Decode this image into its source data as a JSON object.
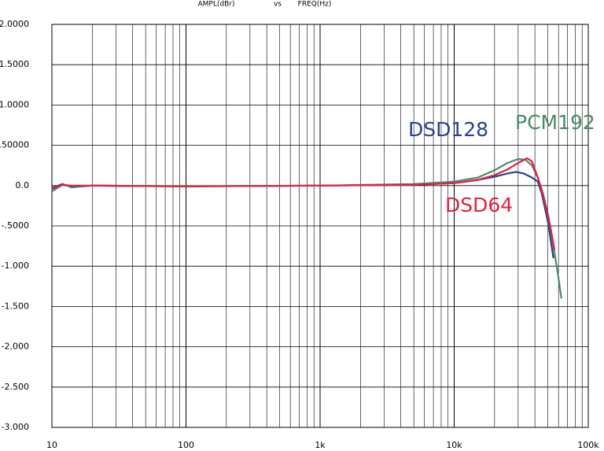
{
  "chart_data": {
    "type": "line",
    "title_parts": [
      "AMPL(dBr)",
      "vs",
      "FREQ(Hz)"
    ],
    "log_x": true,
    "grid": true,
    "xlim": [
      10,
      100000
    ],
    "ylim": [
      -3,
      2
    ],
    "xticks": [
      10,
      100,
      {
        "value": 1000,
        "label": "1k"
      },
      {
        "value": 10000,
        "label": "10k"
      },
      {
        "value": 100000,
        "label": "100k"
      }
    ],
    "yticks": [
      {
        "value": 2,
        "label": "2.0000"
      },
      {
        "value": 1.5,
        "label": "1.5000"
      },
      {
        "value": 1,
        "label": "1.0000"
      },
      {
        "value": 0.5,
        "label": ".50000"
      },
      {
        "value": 0,
        "label": "0.0"
      },
      {
        "value": -0.5,
        "label": "-.5000"
      },
      {
        "value": -1,
        "label": "-1.000"
      },
      {
        "value": -1.5,
        "label": "-1.500"
      },
      {
        "value": -2,
        "label": "-2.000"
      },
      {
        "value": -2.5,
        "label": "-2.500"
      },
      {
        "value": -3,
        "label": "-3.000"
      }
    ],
    "series": [
      {
        "name": "DSD128",
        "color": "#2c3f8e",
        "x": [
          10,
          12,
          14,
          20,
          100,
          1000,
          5000,
          10000,
          15000,
          20000,
          25000,
          29000,
          33000,
          38000,
          42000,
          45000,
          50000,
          55000
        ],
        "values": [
          -0.03,
          0.02,
          -0.02,
          0,
          -0.01,
          0,
          0.01,
          0.03,
          0.07,
          0.11,
          0.15,
          0.17,
          0.15,
          0.1,
          0.05,
          -0.1,
          -0.45,
          -0.9
        ]
      },
      {
        "name": "PCM192",
        "color": "#4a8a6c",
        "x": [
          10,
          12,
          14,
          20,
          100,
          1000,
          5000,
          10000,
          15000,
          20000,
          25000,
          30000,
          34000,
          38000,
          42000,
          46000,
          50000,
          55000,
          60000,
          63000
        ],
        "values": [
          -0.07,
          0.01,
          -0.01,
          0,
          -0.01,
          0,
          0.02,
          0.05,
          0.1,
          0.19,
          0.28,
          0.33,
          0.32,
          0.25,
          0.1,
          -0.1,
          -0.35,
          -0.75,
          -1.15,
          -1.4
        ]
      },
      {
        "name": "DSD64",
        "color": "#e0213c",
        "x": [
          10,
          12,
          14,
          20,
          100,
          1000,
          5000,
          10000,
          15000,
          20000,
          25000,
          30000,
          35000,
          38000,
          41000,
          44000,
          48000,
          52000,
          56000
        ],
        "values": [
          -0.04,
          0.01,
          0.0,
          0,
          -0.01,
          0,
          0.01,
          0.03,
          0.07,
          0.13,
          0.2,
          0.28,
          0.34,
          0.3,
          0.15,
          0.0,
          -0.25,
          -0.5,
          -0.8
        ]
      }
    ]
  }
}
